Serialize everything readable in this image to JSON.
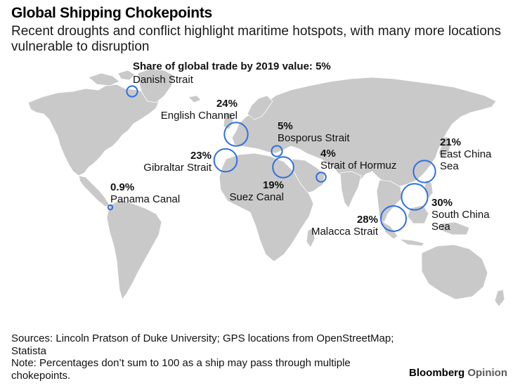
{
  "title": "Global Shipping Chokepoints",
  "subtitle": "Recent droughts and conflict highlight maritime hotspots, with many more locations vulnerable to disruption",
  "legend_heading": "Share of global trade by 2019 value: 5%",
  "colors": {
    "land": "#c9c9c9",
    "circle": "#2e6fe0",
    "background": "#ffffff"
  },
  "chart_data": {
    "type": "bubble-map",
    "metric": "Share of global trade by 2019 value",
    "unit": "%",
    "points": [
      {
        "name": "Danish Strait",
        "share": 5,
        "pct_label": "5%"
      },
      {
        "name": "English Channel",
        "share": 24,
        "pct_label": "24%"
      },
      {
        "name": "Bosporus Strait",
        "share": 5,
        "pct_label": "5%"
      },
      {
        "name": "Gibraltar Strait",
        "share": 23,
        "pct_label": "23%"
      },
      {
        "name": "Strait of Hormuz",
        "share": 4,
        "pct_label": "4%"
      },
      {
        "name": "Suez Canal",
        "share": 19,
        "pct_label": "19%"
      },
      {
        "name": "Panama Canal",
        "share": 0.9,
        "pct_label": "0.9%"
      },
      {
        "name": "East China Sea",
        "share": 21,
        "pct_label": "21%"
      },
      {
        "name": "South China Sea",
        "share": 30,
        "pct_label": "30%"
      },
      {
        "name": "Malacca Strait",
        "share": 28,
        "pct_label": "28%"
      }
    ]
  },
  "labels": {
    "east_china_line1": "East China",
    "east_china_line2": "Sea",
    "south_china_line1": "South China",
    "south_china_line2": "Sea"
  },
  "sources": "Sources: Lincoln Pratson of Duke University; GPS locations from OpenStreetMap; Statista",
  "note": "Note: Percentages don’t sum to 100 as a ship may pass through multiple chokepoints.",
  "brand": {
    "name": "Bloomberg",
    "section": "Opinion"
  }
}
